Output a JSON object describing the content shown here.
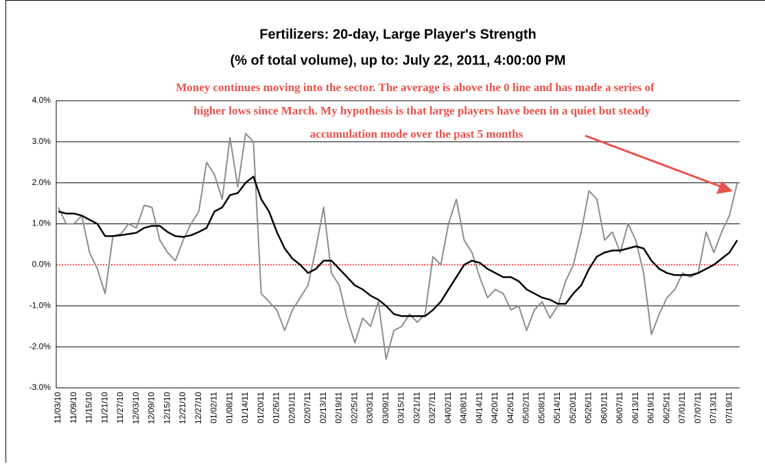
{
  "chart_data": {
    "type": "line",
    "title": [
      "Fertilizers: 20-day, Large Player's Strength",
      "(% of total volume), up to: July 22, 2011, 4:00:00 PM"
    ],
    "annotation": [
      "Money continues moving into the sector. The average is above the 0 line and has made a series of",
      "higher lows since March. My hypothesis is that large players have been in a quiet but steady",
      "accumulation mode over the past 5 months"
    ],
    "categories": [
      "11/03/10",
      null,
      "11/09/10",
      null,
      "11/15/10",
      null,
      "11/21/10",
      null,
      "11/27/10",
      null,
      "12/03/10",
      null,
      "12/09/10",
      null,
      "12/15/10",
      null,
      "12/21/10",
      null,
      "12/27/10",
      null,
      "01/02/11",
      null,
      "01/08/11",
      null,
      "01/14/11",
      null,
      "01/20/11",
      null,
      "01/26/11",
      null,
      "02/01/11",
      null,
      "02/07/11",
      null,
      "02/13/11",
      null,
      "02/19/11",
      null,
      "02/25/11",
      null,
      "03/03/11",
      null,
      "03/09/11",
      null,
      "03/15/11",
      null,
      "03/21/11",
      null,
      "03/27/11",
      null,
      "04/02/11",
      null,
      "04/08/11",
      null,
      "04/14/11",
      null,
      "04/20/11",
      null,
      "04/26/11",
      null,
      "05/02/11",
      null,
      "05/08/11",
      null,
      "05/14/11",
      null,
      "05/20/11",
      null,
      "05/26/11",
      null,
      "06/01/11",
      null,
      "06/07/11",
      null,
      "06/13/11",
      null,
      "06/19/11",
      null,
      "06/25/11",
      null,
      "07/01/11",
      null,
      "07/07/11",
      null,
      "07/13/11",
      null,
      "07/19/11",
      null
    ],
    "series": [
      {
        "color": "#8c8c8c",
        "values": [
          1.4,
          1.0,
          1.0,
          1.2,
          0.3,
          -0.1,
          -0.7,
          0.7,
          0.75,
          1.0,
          0.9,
          1.45,
          1.4,
          0.6,
          0.3,
          0.1,
          0.6,
          1.0,
          1.3,
          2.5,
          2.2,
          1.6,
          3.1,
          1.9,
          3.2,
          3.0,
          -0.7,
          -0.9,
          -1.1,
          -1.6,
          -1.1,
          -0.8,
          -0.5,
          0.4,
          1.4,
          -0.2,
          -0.5,
          -1.3,
          -1.9,
          -1.3,
          -1.5,
          -0.9,
          -2.3,
          -1.6,
          -1.5,
          -1.2,
          -1.4,
          -1.2,
          0.2,
          0.0,
          1.0,
          1.6,
          0.6,
          0.3,
          -0.3,
          -0.8,
          -0.6,
          -0.7,
          -1.1,
          -1.0,
          -1.6,
          -1.1,
          -0.9,
          -1.3,
          -1.0,
          -0.4,
          0.0,
          0.8,
          1.8,
          1.6,
          0.6,
          0.8,
          0.3,
          1.0,
          0.6,
          -0.2,
          -1.7,
          -1.2,
          -0.8,
          -0.6,
          -0.2,
          -0.3,
          -0.2,
          0.8,
          0.3,
          0.8,
          1.2,
          2.0
        ]
      },
      {
        "color": "#000000",
        "values": [
          1.3,
          1.25,
          1.25,
          1.2,
          1.1,
          1.0,
          0.7,
          0.7,
          0.72,
          0.75,
          0.78,
          0.9,
          0.95,
          0.95,
          0.8,
          0.7,
          0.68,
          0.72,
          0.8,
          0.9,
          1.3,
          1.4,
          1.7,
          1.75,
          2.0,
          2.15,
          1.6,
          1.3,
          0.8,
          0.4,
          0.15,
          0.0,
          -0.2,
          -0.1,
          0.1,
          0.1,
          -0.1,
          -0.3,
          -0.5,
          -0.6,
          -0.75,
          -0.85,
          -1.0,
          -1.2,
          -1.25,
          -1.25,
          -1.25,
          -1.25,
          -1.1,
          -0.9,
          -0.6,
          -0.3,
          0.0,
          0.1,
          0.05,
          -0.1,
          -0.2,
          -0.3,
          -0.3,
          -0.4,
          -0.6,
          -0.7,
          -0.8,
          -0.85,
          -0.95,
          -0.95,
          -0.7,
          -0.5,
          -0.1,
          0.2,
          0.3,
          0.35,
          0.35,
          0.4,
          0.45,
          0.4,
          0.1,
          -0.1,
          -0.2,
          -0.25,
          -0.25,
          -0.25,
          -0.2,
          -0.1,
          0.0,
          0.15,
          0.3,
          0.6
        ]
      }
    ],
    "ylim": [
      -3,
      4
    ],
    "yticks": [
      {
        "value": -3,
        "label": "-3.0%"
      },
      {
        "value": -2,
        "label": "-2.0%"
      },
      {
        "value": -1,
        "label": "-1.0%"
      },
      {
        "value": 0,
        "label": "0.0%"
      },
      {
        "value": 1,
        "label": "1.0%"
      },
      {
        "value": 2,
        "label": "2.0%"
      },
      {
        "value": 3,
        "label": "3.0%"
      },
      {
        "value": 4,
        "label": "4.0%"
      }
    ],
    "grid": true,
    "zero_line_color": "#ff4040"
  }
}
